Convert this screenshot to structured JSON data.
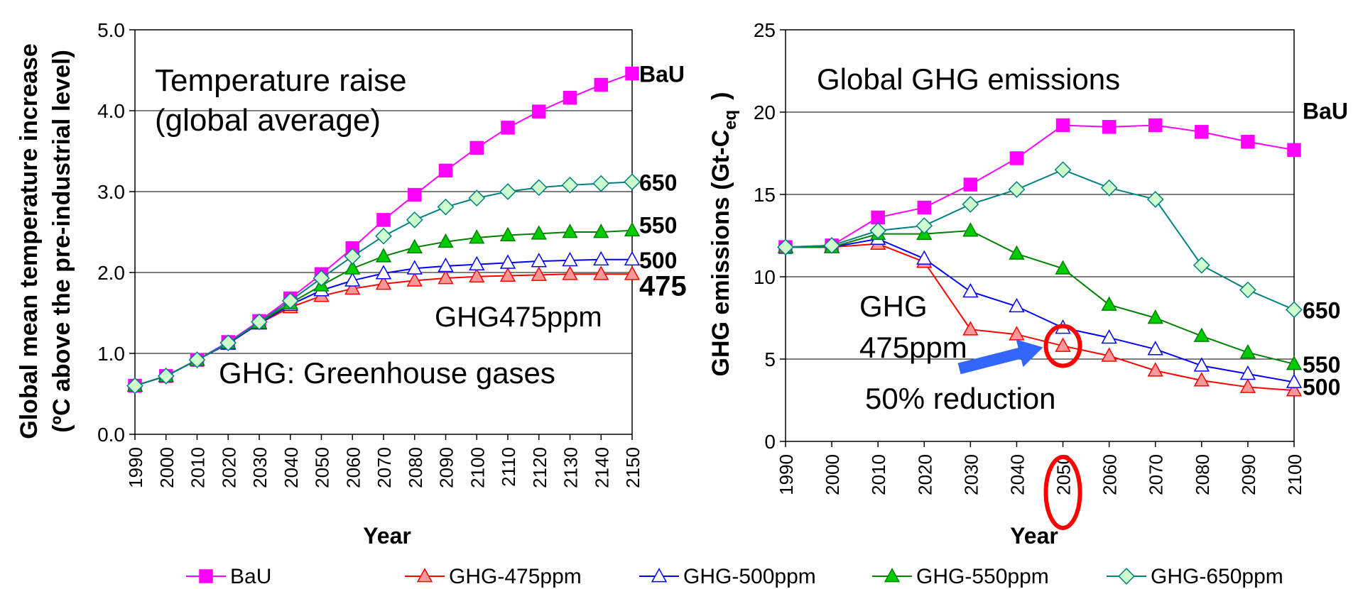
{
  "chart_data": [
    {
      "type": "line",
      "title": "",
      "annotations": [
        "Temperature raise",
        "(global average)",
        "GHG475ppm",
        "GHG: Greenhouse gases"
      ],
      "ylabel_line1": "Global mean temperature increase",
      "ylabel_line2": "(ºC above the pre-industrial level)",
      "xlabel": "Year",
      "ylim": [
        0,
        5
      ],
      "yticks": [
        "0.0",
        "1.0",
        "2.0",
        "3.0",
        "4.0",
        "5.0"
      ],
      "x": [
        "1990",
        "2000",
        "2010",
        "2020",
        "2030",
        "2040",
        "2050",
        "2060",
        "2070",
        "2080",
        "2090",
        "2100",
        "2110",
        "2120",
        "2130",
        "2140",
        "2150"
      ],
      "series": [
        {
          "name": "BaU",
          "color": "#ff00ff",
          "fill": "#ff00ff",
          "marker": "square",
          "end_label": "BaU",
          "values": [
            0.6,
            0.72,
            0.92,
            1.14,
            1.4,
            1.68,
            1.98,
            2.3,
            2.65,
            2.96,
            3.26,
            3.54,
            3.79,
            3.99,
            4.16,
            4.32,
            4.46
          ]
        },
        {
          "name": "GHG-475ppm",
          "color": "#ff0000",
          "fill": "#ff9999",
          "marker": "triangle",
          "end_label": "475",
          "values": [
            0.6,
            0.72,
            0.92,
            1.12,
            1.37,
            1.57,
            1.71,
            1.8,
            1.86,
            1.9,
            1.93,
            1.95,
            1.96,
            1.97,
            1.98,
            1.98,
            1.98
          ]
        },
        {
          "name": "GHG-500ppm",
          "color": "#0000ff",
          "fill": "#ffffff",
          "marker": "triangle",
          "end_label": "500",
          "values": [
            0.6,
            0.72,
            0.92,
            1.12,
            1.37,
            1.6,
            1.78,
            1.9,
            1.99,
            2.05,
            2.08,
            2.1,
            2.12,
            2.14,
            2.15,
            2.16,
            2.16
          ]
        },
        {
          "name": "GHG-550ppm",
          "color": "#008000",
          "fill": "#00cc00",
          "marker": "triangle",
          "end_label": "550",
          "values": [
            0.6,
            0.72,
            0.92,
            1.13,
            1.38,
            1.62,
            1.84,
            2.05,
            2.2,
            2.31,
            2.38,
            2.43,
            2.46,
            2.48,
            2.5,
            2.5,
            2.52
          ]
        },
        {
          "name": "GHG-650ppm",
          "color": "#008080",
          "fill": "#ccffcc",
          "marker": "diamond",
          "end_label": "650",
          "values": [
            0.6,
            0.72,
            0.92,
            1.13,
            1.39,
            1.65,
            1.93,
            2.2,
            2.45,
            2.65,
            2.81,
            2.92,
            3.0,
            3.05,
            3.08,
            3.1,
            3.12
          ]
        }
      ]
    },
    {
      "type": "line",
      "title": "",
      "annotations": [
        "Global GHG emissions",
        "GHG",
        "475ppm",
        "50% reduction"
      ],
      "ylabel": "GHG emissions (Gt-C",
      "ylabel_sub": "eq",
      "ylabel_end": ")",
      "xlabel": "Year",
      "ylim": [
        0,
        25
      ],
      "yticks": [
        "0",
        "5",
        "10",
        "15",
        "20",
        "25"
      ],
      "x": [
        "1990",
        "2000",
        "2010",
        "2020",
        "2030",
        "2040",
        "2050",
        "2060",
        "2070",
        "2080",
        "2090",
        "2100"
      ],
      "series": [
        {
          "name": "BaU",
          "color": "#ff00ff",
          "fill": "#ff00ff",
          "marker": "square",
          "end_label": "BaU",
          "values": [
            11.8,
            11.9,
            13.6,
            14.2,
            15.6,
            17.2,
            19.2,
            19.1,
            19.2,
            18.8,
            18.2,
            17.7
          ]
        },
        {
          "name": "GHG-475ppm",
          "color": "#ff0000",
          "fill": "#ff9999",
          "marker": "triangle",
          "end_label": "",
          "values": [
            11.8,
            11.8,
            12.0,
            10.9,
            6.8,
            6.5,
            5.8,
            5.2,
            4.3,
            3.7,
            3.3,
            3.1
          ]
        },
        {
          "name": "GHG-500ppm",
          "color": "#0000ff",
          "fill": "#ffffff",
          "marker": "triangle",
          "end_label": "500",
          "values": [
            11.8,
            11.8,
            12.3,
            11.1,
            9.1,
            8.2,
            6.9,
            6.3,
            5.6,
            4.6,
            4.1,
            3.6
          ]
        },
        {
          "name": "GHG-550ppm",
          "color": "#008000",
          "fill": "#00cc00",
          "marker": "triangle",
          "end_label": "550",
          "values": [
            11.8,
            11.8,
            12.6,
            12.6,
            12.8,
            11.4,
            10.5,
            8.3,
            7.5,
            6.4,
            5.4,
            4.7
          ]
        },
        {
          "name": "GHG-650ppm",
          "color": "#008080",
          "fill": "#ccffcc",
          "marker": "diamond",
          "end_label": "650",
          "values": [
            11.8,
            11.9,
            12.8,
            13.1,
            14.4,
            15.3,
            16.5,
            15.4,
            14.7,
            10.7,
            9.2,
            8.0
          ]
        }
      ]
    }
  ],
  "legend": [
    {
      "label": "BaU",
      "color": "#ff00ff",
      "fill": "#ff00ff",
      "marker": "square"
    },
    {
      "label": "GHG-475ppm",
      "color": "#ff0000",
      "fill": "#ff9999",
      "marker": "triangle"
    },
    {
      "label": "GHG-500ppm",
      "color": "#0000ff",
      "fill": "#ffffff",
      "marker": "triangle"
    },
    {
      "label": "GHG-550ppm",
      "color": "#008000",
      "fill": "#00cc00",
      "marker": "triangle"
    },
    {
      "label": "GHG-650ppm",
      "color": "#008080",
      "fill": "#ccffcc",
      "marker": "diamond"
    }
  ],
  "highlight_color": "#ff0000",
  "arrow_color": "#3366ff"
}
